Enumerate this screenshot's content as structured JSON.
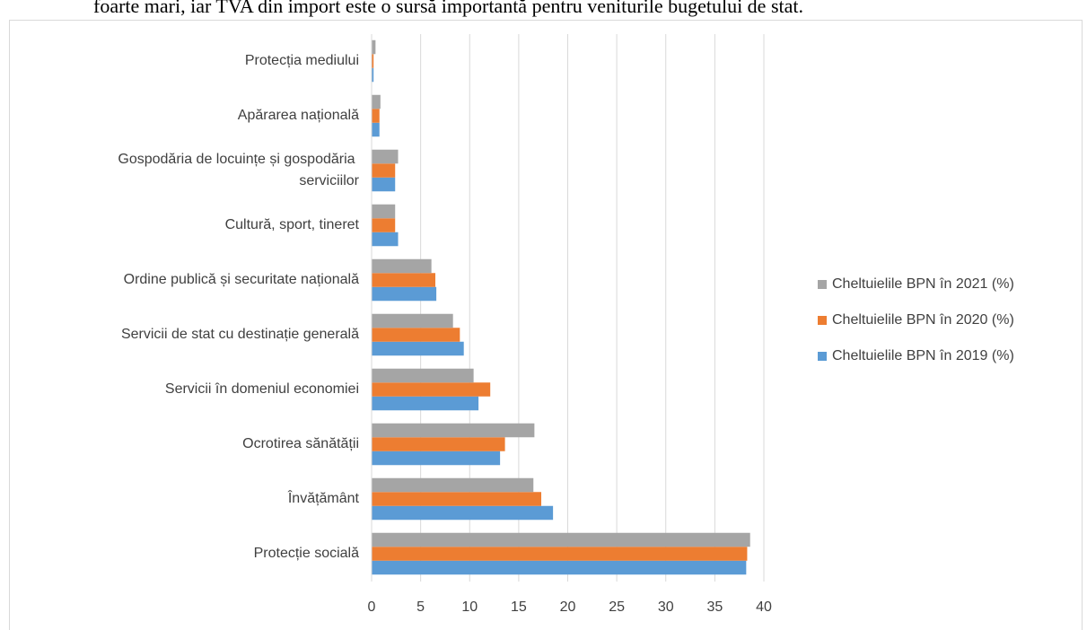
{
  "caption": "foarte mari, iar TVA din import este o sursă importantă pentru veniturile bugetului de stat.",
  "chart_data": {
    "type": "barh",
    "categories": [
      "Protecție socială",
      "Învățământ",
      "Ocrotirea sănătății",
      "Servicii în domeniul economiei",
      "Servicii de stat cu destinație generală",
      "Ordine publică și securitate națională",
      "Cultură, sport, tineret",
      "Gospodăria de locuințe și gospodăria serviciilor",
      "Apărarea națională",
      "Protecția mediului"
    ],
    "series": [
      {
        "name": "Cheltuielile BPN în 2019 (%)",
        "color": "#5b9bd5",
        "values": [
          38.2,
          18.5,
          13.1,
          10.9,
          9.4,
          6.6,
          2.7,
          2.4,
          0.8,
          0.2
        ]
      },
      {
        "name": "Cheltuielile BPN în 2020 (%)",
        "color": "#ed7d31",
        "values": [
          38.3,
          17.3,
          13.6,
          12.1,
          9.0,
          6.5,
          2.4,
          2.4,
          0.8,
          0.2
        ]
      },
      {
        "name": "Cheltuielile BPN în 2021 (%)",
        "color": "#a5a5a5",
        "values": [
          38.6,
          16.5,
          16.6,
          10.4,
          8.3,
          6.1,
          2.4,
          2.7,
          0.9,
          0.4
        ]
      }
    ],
    "xlim": [
      0,
      40
    ],
    "xticks": [
      0,
      5,
      10,
      15,
      20,
      25,
      30,
      35,
      40
    ],
    "grid": true,
    "legend": "right"
  }
}
